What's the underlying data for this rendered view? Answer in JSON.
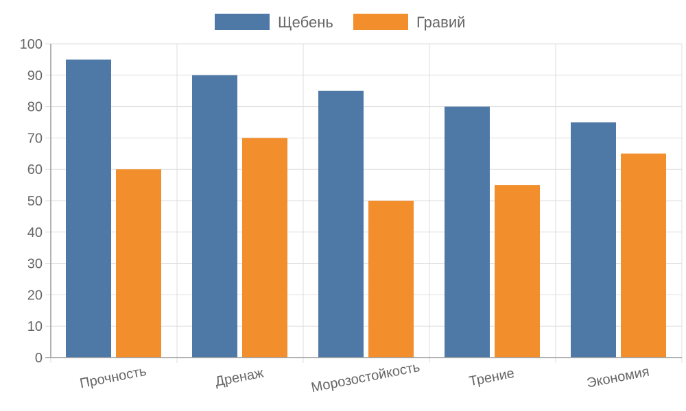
{
  "chart_data": {
    "type": "bar",
    "categories": [
      "Прочность",
      "Дренаж",
      "Морозостойкость",
      "Трение",
      "Экономия"
    ],
    "series": [
      {
        "name": "Щебень",
        "values": [
          95,
          90,
          85,
          80,
          75
        ],
        "color": "#4e79a7"
      },
      {
        "name": "Гравий",
        "values": [
          60,
          70,
          50,
          55,
          65
        ],
        "color": "#f28e2b"
      }
    ],
    "y_ticks": [
      "0",
      "10",
      "20",
      "30",
      "40",
      "50",
      "60",
      "70",
      "80",
      "90",
      "100"
    ],
    "ylim": [
      0,
      100
    ],
    "grid": true,
    "legend_position": "top-center"
  },
  "colors": {
    "grid": "#dddddd",
    "axis": "#999999",
    "text": "#666666"
  }
}
